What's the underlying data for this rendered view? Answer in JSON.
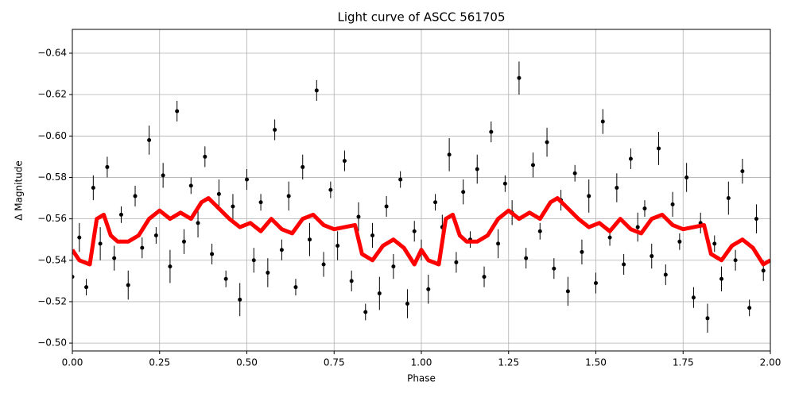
{
  "chart_data": {
    "type": "scatter",
    "title": "Light curve of ASCC 561705",
    "xlabel": "Phase",
    "ylabel": "Δ Magnitude",
    "xlim": [
      0,
      2
    ],
    "ylim": [
      -0.4962,
      -0.6515
    ],
    "grid": true,
    "xticks": [
      {
        "value": 0,
        "label": "0.00"
      },
      {
        "value": 0.25,
        "label": "0.25"
      },
      {
        "value": 0.5,
        "label": "0.50"
      },
      {
        "value": 0.75,
        "label": "0.75"
      },
      {
        "value": 1,
        "label": "1.00"
      },
      {
        "value": 1.25,
        "label": "1.25"
      },
      {
        "value": 1.5,
        "label": "1.50"
      },
      {
        "value": 1.75,
        "label": "1.75"
      },
      {
        "value": 2,
        "label": "2.00"
      }
    ],
    "yticks": [
      {
        "value": -0.64,
        "label": "−0.64"
      },
      {
        "value": -0.62,
        "label": "−0.62"
      },
      {
        "value": -0.6,
        "label": "−0.60"
      },
      {
        "value": -0.58,
        "label": "−0.58"
      },
      {
        "value": -0.56,
        "label": "−0.56"
      },
      {
        "value": -0.54,
        "label": "−0.54"
      },
      {
        "value": -0.52,
        "label": "−0.52"
      },
      {
        "value": -0.5,
        "label": "−0.50"
      }
    ],
    "series": [
      {
        "kind": "errorbar",
        "color": "#000000",
        "x": [
          0,
          0.02,
          0.04,
          0.06,
          0.08,
          0.1,
          0.12,
          0.14,
          0.16,
          0.18,
          0.2,
          0.22,
          0.24,
          0.26,
          0.28,
          0.3,
          0.32,
          0.34,
          0.36,
          0.38,
          0.4,
          0.42,
          0.44,
          0.46,
          0.48,
          0.5,
          0.52,
          0.54,
          0.56,
          0.58,
          0.6,
          0.62,
          0.64,
          0.66,
          0.68,
          0.7,
          0.72,
          0.74,
          0.76,
          0.78,
          0.8,
          0.82,
          0.84,
          0.86,
          0.88,
          0.9,
          0.92,
          0.94,
          0.96,
          0.98,
          1,
          1.02,
          1.04,
          1.06,
          1.08,
          1.1,
          1.12,
          1.14,
          1.16,
          1.18,
          1.2,
          1.22,
          1.24,
          1.26,
          1.28,
          1.3,
          1.32,
          1.34,
          1.36,
          1.38,
          1.4,
          1.42,
          1.44,
          1.46,
          1.48,
          1.5,
          1.52,
          1.54,
          1.56,
          1.58,
          1.6,
          1.62,
          1.64,
          1.66,
          1.68,
          1.7,
          1.72,
          1.74,
          1.76,
          1.78,
          1.8,
          1.82,
          1.84,
          1.86,
          1.88,
          1.9,
          1.92,
          1.94,
          1.96,
          1.98
        ],
        "values": [
          -0.532,
          -0.551,
          -0.527,
          -0.575,
          -0.548,
          -0.585,
          -0.541,
          -0.562,
          -0.528,
          -0.571,
          -0.546,
          -0.598,
          -0.552,
          -0.581,
          -0.537,
          -0.612,
          -0.549,
          -0.576,
          -0.558,
          -0.59,
          -0.543,
          -0.572,
          -0.531,
          -0.566,
          -0.521,
          -0.579,
          -0.54,
          -0.568,
          -0.534,
          -0.603,
          -0.545,
          -0.571,
          -0.527,
          -0.585,
          -0.55,
          -0.622,
          -0.538,
          -0.574,
          -0.547,
          -0.588,
          -0.53,
          -0.561,
          -0.515,
          -0.552,
          -0.524,
          -0.566,
          -0.537,
          -0.579,
          -0.519,
          -0.554,
          -0.545,
          -0.526,
          -0.568,
          -0.556,
          -0.591,
          -0.539,
          -0.573,
          -0.55,
          -0.584,
          -0.532,
          -0.602,
          -0.548,
          -0.577,
          -0.563,
          -0.628,
          -0.541,
          -0.586,
          -0.554,
          -0.597,
          -0.536,
          -0.569,
          -0.525,
          -0.582,
          -0.544,
          -0.571,
          -0.529,
          -0.607,
          -0.551,
          -0.575,
          -0.538,
          -0.589,
          -0.556,
          -0.565,
          -0.542,
          -0.594,
          -0.533,
          -0.567,
          -0.549,
          -0.58,
          -0.522,
          -0.558,
          -0.512,
          -0.548,
          -0.531,
          -0.57,
          -0.54,
          -0.583,
          -0.517,
          -0.56,
          -0.535
        ],
        "errors": [
          0.005,
          0.007,
          0.004,
          0.006,
          0.008,
          0.005,
          0.006,
          0.004,
          0.007,
          0.005,
          0.005,
          0.007,
          0.004,
          0.006,
          0.008,
          0.005,
          0.006,
          0.004,
          0.007,
          0.005,
          0.005,
          0.007,
          0.004,
          0.006,
          0.008,
          0.005,
          0.006,
          0.004,
          0.007,
          0.005,
          0.005,
          0.007,
          0.004,
          0.006,
          0.008,
          0.005,
          0.006,
          0.004,
          0.007,
          0.005,
          0.005,
          0.007,
          0.004,
          0.006,
          0.008,
          0.005,
          0.006,
          0.004,
          0.007,
          0.005,
          0.005,
          0.007,
          0.004,
          0.006,
          0.008,
          0.005,
          0.006,
          0.004,
          0.007,
          0.005,
          0.005,
          0.007,
          0.004,
          0.006,
          0.008,
          0.005,
          0.006,
          0.004,
          0.007,
          0.005,
          0.005,
          0.007,
          0.004,
          0.006,
          0.008,
          0.005,
          0.006,
          0.004,
          0.007,
          0.005,
          0.005,
          0.007,
          0.004,
          0.006,
          0.008,
          0.005,
          0.006,
          0.004,
          0.007,
          0.005,
          0.005,
          0.007,
          0.004,
          0.006,
          0.008,
          0.005,
          0.006,
          0.004,
          0.007,
          0.005
        ]
      },
      {
        "kind": "line",
        "color": "#ff0000",
        "x": [
          0,
          0.02,
          0.05,
          0.07,
          0.09,
          0.11,
          0.13,
          0.16,
          0.19,
          0.22,
          0.25,
          0.28,
          0.31,
          0.34,
          0.37,
          0.39,
          0.42,
          0.45,
          0.48,
          0.51,
          0.54,
          0.57,
          0.6,
          0.63,
          0.66,
          0.69,
          0.72,
          0.75,
          0.78,
          0.81,
          0.83,
          0.86,
          0.89,
          0.92,
          0.95,
          0.98,
          1,
          1.02,
          1.05,
          1.07,
          1.09,
          1.11,
          1.13,
          1.16,
          1.19,
          1.22,
          1.25,
          1.28,
          1.31,
          1.34,
          1.37,
          1.39,
          1.42,
          1.45,
          1.48,
          1.51,
          1.54,
          1.57,
          1.6,
          1.63,
          1.66,
          1.69,
          1.72,
          1.75,
          1.78,
          1.81,
          1.83,
          1.86,
          1.89,
          1.92,
          1.95,
          1.98,
          2
        ],
        "values": [
          -0.545,
          -0.54,
          -0.538,
          -0.56,
          -0.562,
          -0.552,
          -0.549,
          -0.549,
          -0.552,
          -0.56,
          -0.564,
          -0.56,
          -0.563,
          -0.56,
          -0.568,
          -0.57,
          -0.565,
          -0.56,
          -0.556,
          -0.558,
          -0.554,
          -0.56,
          -0.555,
          -0.553,
          -0.56,
          -0.562,
          -0.557,
          -0.555,
          -0.556,
          -0.557,
          -0.543,
          -0.54,
          -0.547,
          -0.55,
          -0.546,
          -0.538,
          -0.545,
          -0.54,
          -0.538,
          -0.56,
          -0.562,
          -0.552,
          -0.549,
          -0.549,
          -0.552,
          -0.56,
          -0.564,
          -0.56,
          -0.563,
          -0.56,
          -0.568,
          -0.57,
          -0.565,
          -0.56,
          -0.556,
          -0.558,
          -0.554,
          -0.56,
          -0.555,
          -0.553,
          -0.56,
          -0.562,
          -0.557,
          -0.555,
          -0.556,
          -0.557,
          -0.543,
          -0.54,
          -0.547,
          -0.55,
          -0.546,
          -0.538,
          -0.54
        ]
      }
    ]
  }
}
